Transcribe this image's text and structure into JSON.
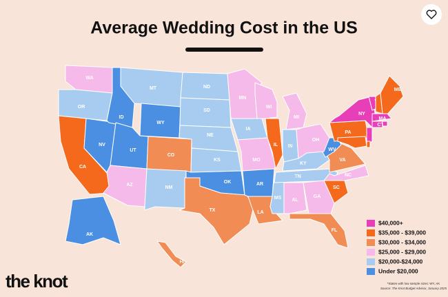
{
  "title": "Average Wedding Cost in the US",
  "legend": [
    {
      "label": "$40,000+",
      "color": "#e83fb8"
    },
    {
      "label": "$35,000 - $39,000",
      "color": "#f5691c"
    },
    {
      "label": "$30,000 - $34,000",
      "color": "#f28c55"
    },
    {
      "label": "$25,000 - $29,000",
      "color": "#f5b9ea"
    },
    {
      "label": "$20,000-$24,000",
      "color": "#a8ccef"
    },
    {
      "label": "Under $20,000",
      "color": "#4a8fe2"
    }
  ],
  "states": [
    {
      "abbr": "WA",
      "range": "$25,000 - $29,000"
    },
    {
      "abbr": "OR",
      "range": "$20,000-$24,000"
    },
    {
      "abbr": "CA",
      "range": "$35,000 - $39,000"
    },
    {
      "abbr": "NV",
      "range": "Under $20,000"
    },
    {
      "abbr": "ID",
      "range": "Under $20,000"
    },
    {
      "abbr": "MT",
      "range": "$20,000-$24,000"
    },
    {
      "abbr": "WY",
      "range": "Under $20,000"
    },
    {
      "abbr": "UT",
      "range": "Under $20,000"
    },
    {
      "abbr": "AZ",
      "range": "$25,000 - $29,000"
    },
    {
      "abbr": "CO",
      "range": "$30,000 - $34,000"
    },
    {
      "abbr": "NM",
      "range": "$20,000-$24,000"
    },
    {
      "abbr": "ND",
      "range": "$20,000-$24,000"
    },
    {
      "abbr": "SD",
      "range": "$20,000-$24,000"
    },
    {
      "abbr": "NE",
      "range": "$20,000-$24,000"
    },
    {
      "abbr": "KS",
      "range": "$20,000-$24,000"
    },
    {
      "abbr": "OK",
      "range": "Under $20,000"
    },
    {
      "abbr": "TX",
      "range": "$30,000 - $34,000"
    },
    {
      "abbr": "MN",
      "range": "$25,000 - $29,000"
    },
    {
      "abbr": "IA",
      "range": "$20,000-$24,000"
    },
    {
      "abbr": "MO",
      "range": "$25,000 - $29,000"
    },
    {
      "abbr": "AR",
      "range": "Under $20,000"
    },
    {
      "abbr": "LA",
      "range": "$30,000 - $34,000"
    },
    {
      "abbr": "WI",
      "range": "$25,000 - $29,000"
    },
    {
      "abbr": "IL",
      "range": "$35,000 - $39,000"
    },
    {
      "abbr": "MS",
      "range": "$20,000-$24,000"
    },
    {
      "abbr": "MI",
      "range": "$25,000 - $29,000"
    },
    {
      "abbr": "IN",
      "range": "$20,000-$24,000"
    },
    {
      "abbr": "KY",
      "range": "$20,000-$24,000"
    },
    {
      "abbr": "TN",
      "range": "$20,000-$24,000"
    },
    {
      "abbr": "AL",
      "range": "$25,000 - $29,000"
    },
    {
      "abbr": "GA",
      "range": "$25,000 - $29,000"
    },
    {
      "abbr": "FL",
      "range": "$30,000 - $34,000"
    },
    {
      "abbr": "SC",
      "range": "$35,000 - $39,000"
    },
    {
      "abbr": "NC",
      "range": "$25,000 - $29,000"
    },
    {
      "abbr": "VA",
      "range": "$30,000 - $34,000"
    },
    {
      "abbr": "WV",
      "range": "Under $20,000"
    },
    {
      "abbr": "OH",
      "range": "$25,000 - $29,000"
    },
    {
      "abbr": "PA",
      "range": "$35,000 - $39,000"
    },
    {
      "abbr": "NY",
      "range": "$40,000+"
    },
    {
      "abbr": "VT",
      "range": "$40,000+"
    },
    {
      "abbr": "NH",
      "range": "$35,000 - $39,000"
    },
    {
      "abbr": "ME",
      "range": "$35,000 - $39,000"
    },
    {
      "abbr": "MA",
      "range": "$40,000+"
    },
    {
      "abbr": "CT",
      "range": "$40,000+"
    },
    {
      "abbr": null,
      "range": "$40,000+"
    },
    {
      "abbr": null,
      "range": "$40,000+"
    },
    {
      "abbr": null,
      "range": "$35,000 - $39,000"
    },
    {
      "abbr": null,
      "range": "$35,000 - $39,000"
    },
    {
      "abbr": "AK",
      "range": "Under $20,000"
    },
    {
      "abbr": "HI",
      "range": "$30,000 - $34,000"
    }
  ],
  "footnote": "*States with low sample sizes: WY, AK",
  "source": "Source: The Knot Budget Advisor, January 2025",
  "logo": "the knot"
}
